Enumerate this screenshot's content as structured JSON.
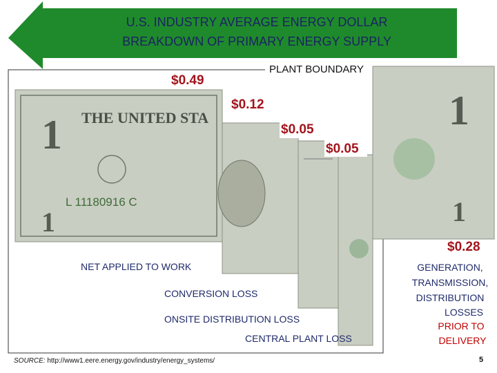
{
  "header": {
    "title_lines": [
      "U.S. INDUSTRY AVERAGE ENERGY DOLLAR",
      "BREAKDOWN OF PRIMARY ENERGY SUPPLY"
    ]
  },
  "plant_boundary": "PLANT BOUNDARY",
  "amounts": [
    "$0.49",
    "$0.12",
    "$0.05",
    "$0.05",
    "$0.28"
  ],
  "labels": [
    "NET APPLIED TO WORK",
    "CONVERSION LOSS",
    "ONSITE DISTRIBUTION LOSS",
    "CENTRAL PLANT LOSS"
  ],
  "delivery_note": {
    "lines": [
      "GENERATION,",
      "TRANSMISSION,",
      "DISTRIBUTION",
      "LOSSES"
    ],
    "emphasis": [
      "PRIOR TO",
      "DELIVERY"
    ]
  },
  "source": {
    "label": "SOURCE:",
    "url": "http://www1.eere.energy.gov/industry/energy_systems/"
  },
  "page_number": "5"
}
